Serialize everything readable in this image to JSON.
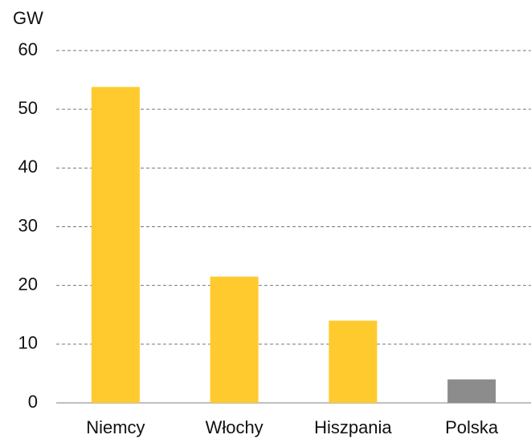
{
  "chart_data": {
    "type": "bar",
    "y_label": "GW",
    "categories": [
      "Niemcy",
      "Włochy",
      "Hiszpania",
      "Polska"
    ],
    "values": [
      53.8,
      21.5,
      14,
      4
    ],
    "colors": [
      "#ffca2e",
      "#ffca2e",
      "#ffca2e",
      "#8c8c8c"
    ],
    "ylim": [
      0,
      60
    ],
    "yticks": [
      0,
      10,
      20,
      30,
      40,
      50,
      60
    ],
    "grid": true
  }
}
